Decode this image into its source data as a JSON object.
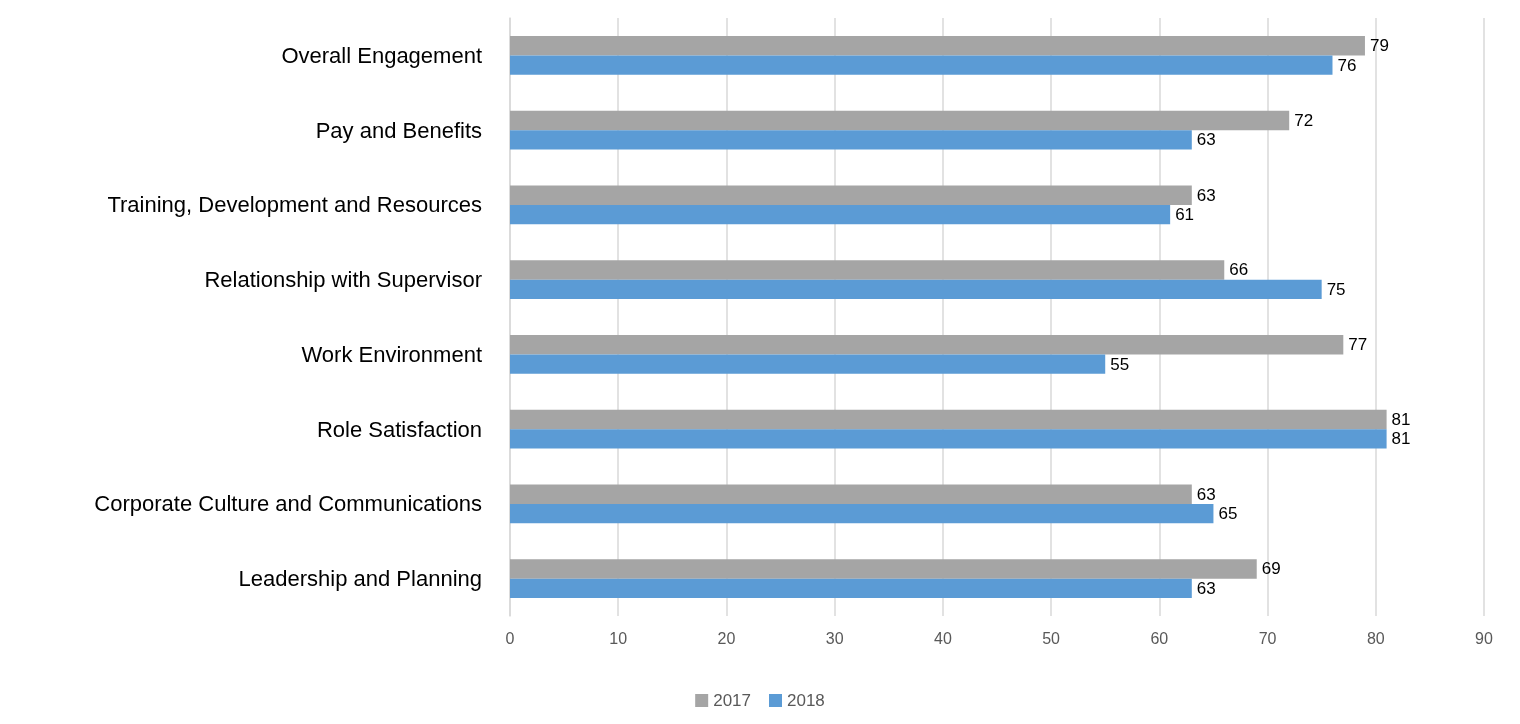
{
  "chart_data": {
    "type": "bar",
    "orientation": "horizontal",
    "categories": [
      "Overall Engagement",
      "Pay and Benefits",
      "Training, Development and Resources",
      "Relationship with Supervisor",
      "Work Environment",
      "Role Satisfaction",
      "Corporate Culture and Communications",
      "Leadership and Planning"
    ],
    "series": [
      {
        "name": "2017",
        "color": "#a5a5a5",
        "values": [
          79,
          72,
          63,
          66,
          77,
          81,
          63,
          69
        ]
      },
      {
        "name": "2018",
        "color": "#5b9bd5",
        "values": [
          76,
          63,
          61,
          75,
          55,
          81,
          65,
          63
        ]
      }
    ],
    "xlim": [
      0,
      90
    ],
    "xticks": [
      0,
      10,
      20,
      30,
      40,
      50,
      60,
      70,
      80,
      90
    ],
    "grid": "x",
    "legend": "bottom",
    "data_labels": true
  }
}
